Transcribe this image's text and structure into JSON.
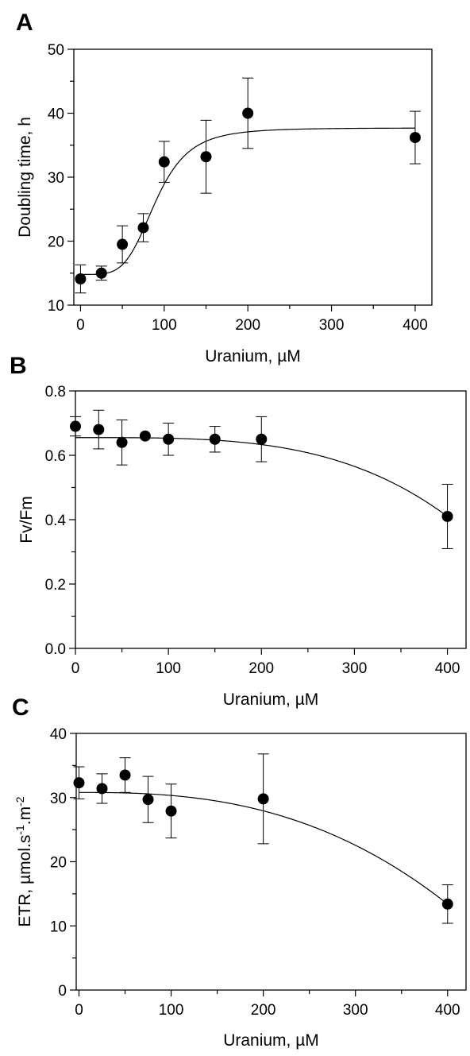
{
  "figure": {
    "panels": [
      "A",
      "B",
      "C"
    ]
  },
  "chart_data": [
    {
      "panel": "A",
      "type": "scatter",
      "xlabel": "Uranium, µM",
      "ylabel": "Doubling time, h",
      "xlim": [
        -8,
        420
      ],
      "ylim": [
        10,
        50
      ],
      "xticks": [
        0,
        100,
        200,
        300,
        400
      ],
      "yticks": [
        10,
        20,
        30,
        40,
        50
      ],
      "x": [
        0,
        25,
        50,
        75,
        100,
        150,
        200,
        400
      ],
      "y": [
        14.1,
        15.0,
        19.5,
        22.1,
        32.4,
        33.2,
        40.0,
        36.2
      ],
      "err": [
        2.2,
        1.1,
        2.9,
        2.2,
        3.2,
        5.7,
        5.5,
        4.1
      ],
      "fit": {
        "type": "sigmoid",
        "bottom": 14.8,
        "top": 37.7,
        "x50": 90,
        "hill": 4.5
      }
    },
    {
      "panel": "B",
      "type": "scatter",
      "xlabel": "Uranium, µM",
      "ylabel": "Fv/Fm",
      "xlim": [
        0,
        420
      ],
      "ylim": [
        0.0,
        0.8
      ],
      "xticks": [
        0,
        100,
        200,
        300,
        400
      ],
      "yticks": [
        0.0,
        0.2,
        0.4,
        0.6,
        0.8
      ],
      "ytick_labels": [
        "0.0",
        "0.2",
        "0.4",
        "0.6",
        "0.8"
      ],
      "x": [
        0,
        25,
        50,
        75,
        100,
        150,
        200,
        400
      ],
      "y": [
        0.69,
        0.68,
        0.64,
        0.66,
        0.65,
        0.65,
        0.65,
        0.41
      ],
      "err": [
        0.03,
        0.06,
        0.07,
        0.0,
        0.05,
        0.04,
        0.07,
        0.1
      ],
      "fit": {
        "type": "decay",
        "a": 0.655,
        "b": 0.245,
        "c": 400,
        "n": 3.5
      }
    },
    {
      "panel": "C",
      "type": "scatter",
      "xlabel": "Uranium, µM",
      "ylabel": "ETR, µmol.s-1.m-2",
      "ylabel_parts": [
        "ETR, µmol.s",
        "-1",
        ".m",
        "-2"
      ],
      "xlim": [
        -3,
        420
      ],
      "ylim": [
        0,
        40
      ],
      "xticks": [
        0,
        100,
        200,
        300,
        400
      ],
      "yticks": [
        0,
        10,
        20,
        30,
        40
      ],
      "x": [
        0,
        25,
        50,
        75,
        100,
        200,
        400
      ],
      "y": [
        32.3,
        31.4,
        33.5,
        29.7,
        27.9,
        29.8,
        13.4
      ],
      "err": [
        2.5,
        2.3,
        2.7,
        3.6,
        4.2,
        7.0,
        3.0
      ],
      "fit": {
        "type": "decay",
        "a": 30.8,
        "b": 17.4,
        "c": 400,
        "n": 2.6
      }
    }
  ]
}
